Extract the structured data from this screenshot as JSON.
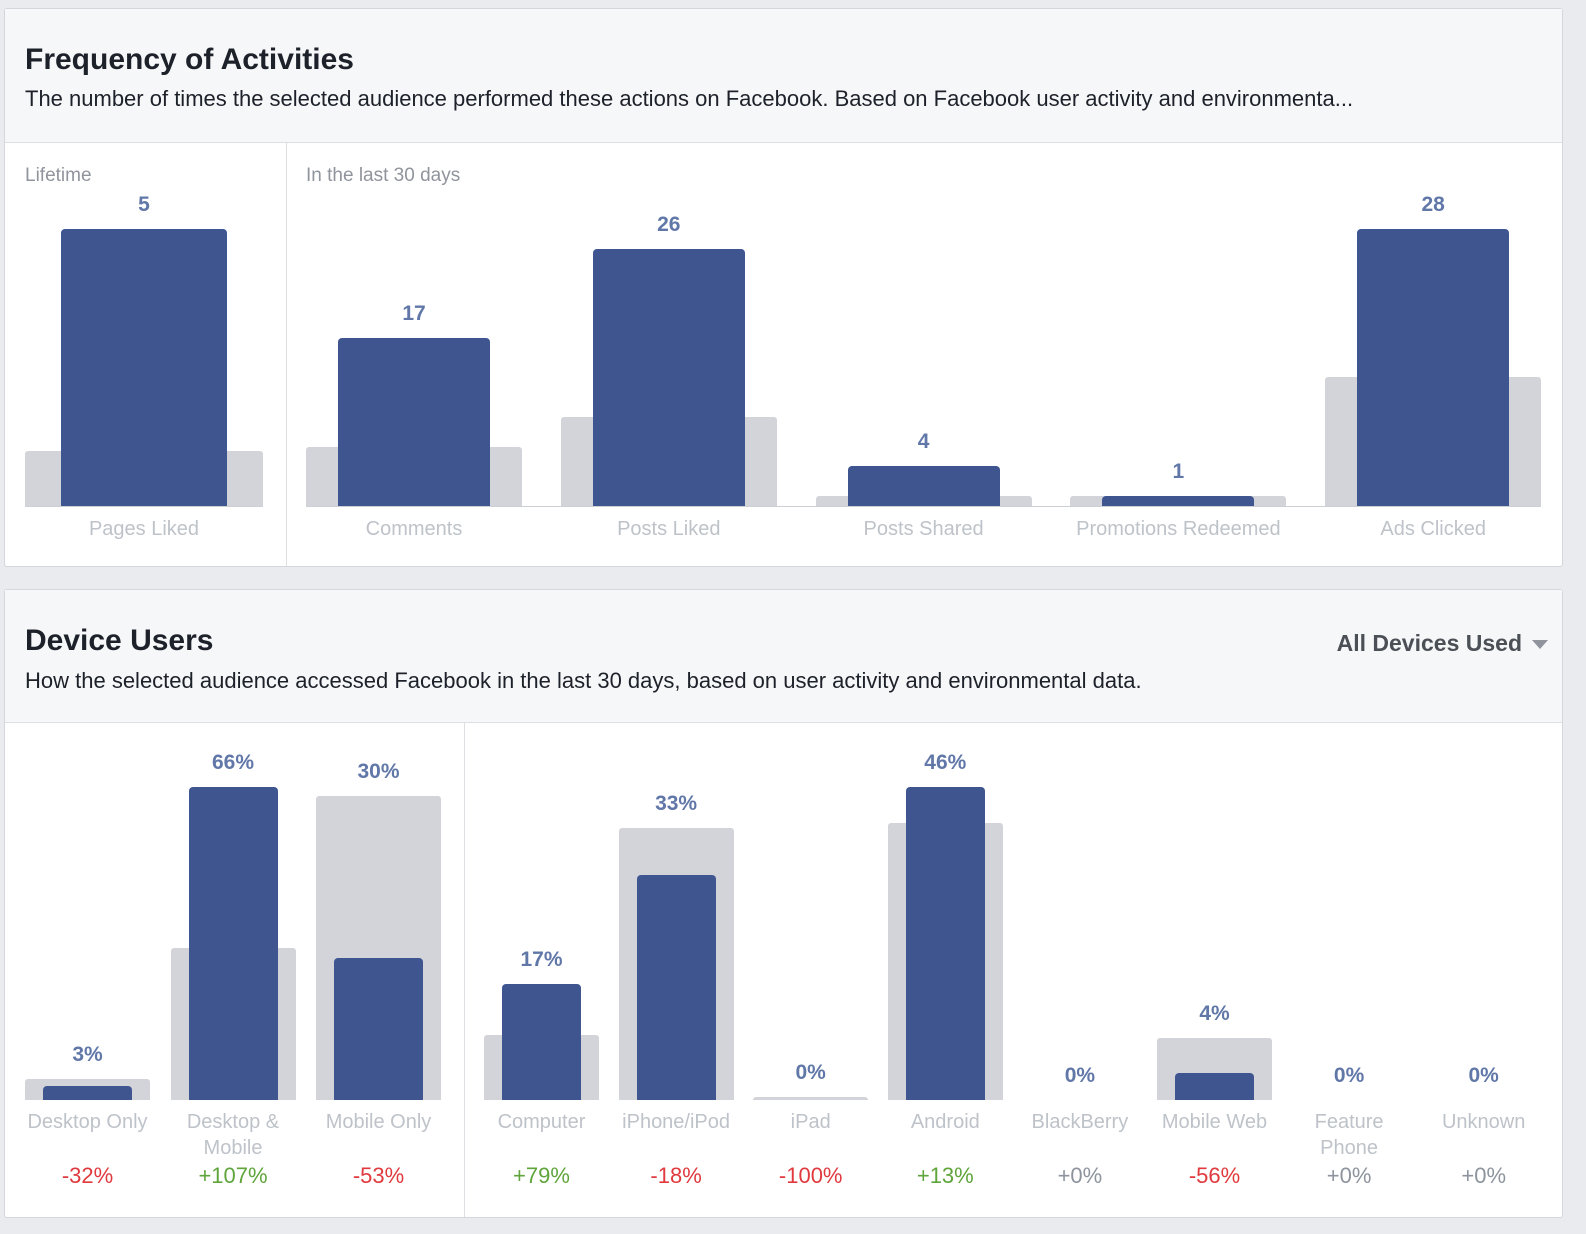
{
  "cards": [
    {
      "title": "Frequency of Activities",
      "subtitle": "The number of times the selected audience performed these actions on Facebook. Based on Facebook user activity and environmenta..."
    },
    {
      "title": "Device Users",
      "dropdown": "All Devices Used",
      "subtitle": "How the selected audience accessed Facebook in the last 30 days, based on user activity and environmental data."
    }
  ],
  "chart_data": [
    {
      "type": "bar",
      "group_label": "Lifetime",
      "categories": [
        "Pages Liked"
      ],
      "ylim": [
        0,
        5
      ],
      "series": [
        {
          "color": "#d3d4d9",
          "values": [
            1
          ]
        },
        {
          "color": "#3e5590",
          "values": [
            5
          ]
        }
      ]
    },
    {
      "type": "bar",
      "group_label": "In the last 30 days",
      "categories": [
        "Comments",
        "Posts Liked",
        "Posts Shared",
        "Promotions Redeemed",
        "Ads Clicked"
      ],
      "ylim": [
        0,
        28
      ],
      "series": [
        {
          "color": "#d3d4d9",
          "values": [
            6,
            9,
            1,
            1,
            13
          ]
        },
        {
          "color": "#3e5590",
          "values": [
            17,
            26,
            4,
            1,
            28
          ]
        }
      ]
    },
    {
      "type": "bar",
      "categories": [
        "Desktop Only",
        "Desktop & Mobile",
        "Mobile Only"
      ],
      "ylim": [
        0,
        66
      ],
      "series": [
        {
          "color": "#d3d4d9",
          "values": [
            4.4,
            32,
            64
          ]
        },
        {
          "color": "#3e5590",
          "values": [
            3,
            66,
            30
          ],
          "value_labels": [
            "3%",
            "66%",
            "30%"
          ]
        }
      ],
      "changes": {
        "values": [
          -32,
          107,
          -53
        ],
        "value_labels": [
          "-32%",
          "+107%",
          "-53%"
        ]
      }
    },
    {
      "type": "bar",
      "categories": [
        "Computer",
        "iPhone/iPod",
        "iPad",
        "Android",
        "BlackBerry",
        "Mobile Web",
        "Feature Phone",
        "Unknown"
      ],
      "ylim": [
        0,
        46
      ],
      "series": [
        {
          "color": "#d3d4d9",
          "values": [
            9.5,
            40,
            0.5,
            40.7,
            0,
            9.1,
            0,
            0
          ]
        },
        {
          "color": "#3e5590",
          "values": [
            17,
            33,
            0,
            46,
            0,
            4,
            0,
            0
          ],
          "value_labels": [
            "17%",
            "33%",
            "0%",
            "46%",
            "0%",
            "4%",
            "0%",
            "0%"
          ]
        }
      ],
      "changes": {
        "values": [
          79,
          -18,
          -100,
          13,
          0,
          -56,
          0,
          0
        ],
        "value_labels": [
          "+79%",
          "-18%",
          "-100%",
          "+13%",
          "+0%",
          "-56%",
          "+0%",
          "+0%"
        ]
      }
    }
  ]
}
